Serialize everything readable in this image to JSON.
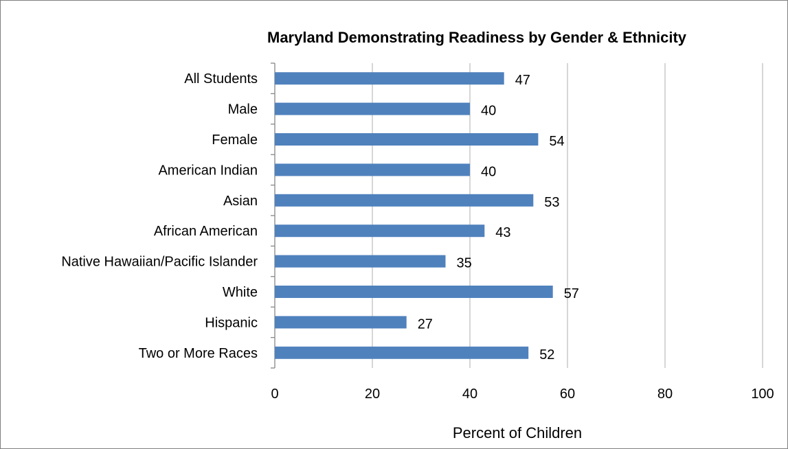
{
  "chart_data": {
    "type": "bar",
    "orientation": "horizontal",
    "title": "Maryland Demonstrating Readiness by Gender & Ethnicity",
    "xlabel": "Percent of Children",
    "ylabel": "",
    "categories": [
      "All Students",
      "Male",
      "Female",
      "American Indian",
      "Asian",
      "African American",
      "Native Hawaiian/Pacific Islander",
      "White",
      "Hispanic",
      "Two or More Races"
    ],
    "values": [
      47,
      40,
      54,
      40,
      53,
      43,
      35,
      57,
      27,
      52
    ],
    "xlim": [
      0,
      100
    ],
    "xticks": [
      0,
      20,
      40,
      60,
      80,
      100
    ],
    "grid": "vertical",
    "legend": "none",
    "bar_color": "#4f81bd",
    "grid_color": "#bfbfbf"
  }
}
